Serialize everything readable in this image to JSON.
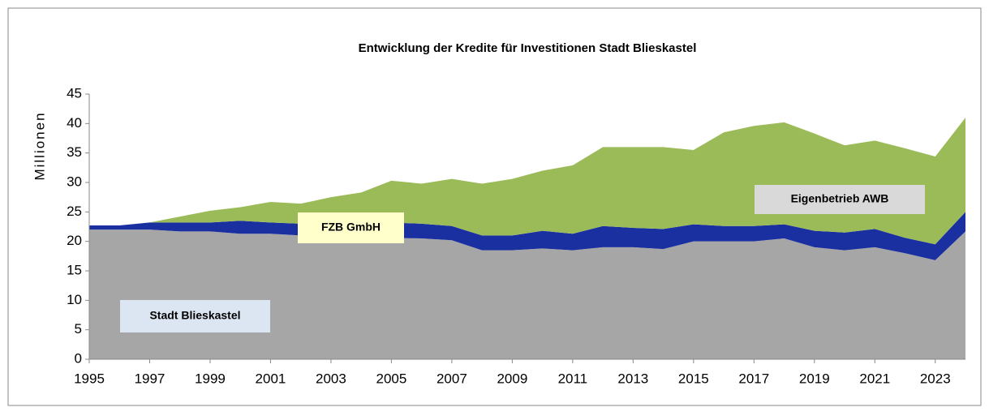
{
  "chart_data": {
    "type": "area",
    "stacked": true,
    "title": "Entwicklung der Kredite für Investitionen Stadt Blieskastel",
    "y_label": "Millionen",
    "x": [
      1995,
      1996,
      1997,
      1998,
      1999,
      2000,
      2001,
      2002,
      2003,
      2004,
      2005,
      2006,
      2007,
      2008,
      2009,
      2010,
      2011,
      2012,
      2013,
      2014,
      2015,
      2016,
      2017,
      2018,
      2019,
      2020,
      2021,
      2022,
      2023,
      2024
    ],
    "series": [
      {
        "name": "Stadt Blieskastel",
        "color": "#a6a6a6",
        "label_color": "#dce6f2",
        "values": [
          22,
          22,
          22,
          21.7,
          21.7,
          21.3,
          21.3,
          21,
          20.8,
          20.6,
          20.6,
          20.5,
          20.2,
          18.5,
          18.5,
          18.8,
          18.5,
          19,
          19,
          18.7,
          20,
          20,
          20,
          20.5,
          19,
          18.5,
          19,
          18,
          16.8,
          21.7
        ]
      },
      {
        "name": "FZB GmbH",
        "color": "#1a2fa0",
        "label_color": "#ffffcc",
        "values": [
          0.7,
          0.7,
          1.2,
          1.5,
          1.5,
          2.2,
          1.9,
          2,
          2.2,
          2.4,
          2.6,
          2.5,
          2.4,
          2.5,
          2.5,
          3,
          2.8,
          3.6,
          3.3,
          3.4,
          2.9,
          2.6,
          2.6,
          2.4,
          2.8,
          3,
          3.1,
          2.6,
          2.7,
          3.3
        ]
      },
      {
        "name": "Eigenbetrieb AWB",
        "color": "#9bbb59",
        "label_color": "#d9d9d9",
        "values": [
          0,
          0,
          0,
          1,
          2,
          2.3,
          3.5,
          3.4,
          4.5,
          5.3,
          7.1,
          6.8,
          8,
          8.8,
          9.6,
          10.2,
          11.6,
          13.4,
          13.7,
          13.9,
          12.6,
          15.9,
          17,
          17.3,
          16.5,
          14.8,
          15,
          15.2,
          14.9,
          16
        ]
      }
    ],
    "xlim": [
      1995,
      2024
    ],
    "xticks": [
      1995,
      1997,
      1999,
      2001,
      2003,
      2005,
      2007,
      2009,
      2011,
      2013,
      2015,
      2017,
      2019,
      2021,
      2023
    ],
    "ylim": [
      0,
      45
    ],
    "yticks": [
      0,
      5,
      10,
      15,
      20,
      25,
      30,
      35,
      40,
      45
    ]
  }
}
